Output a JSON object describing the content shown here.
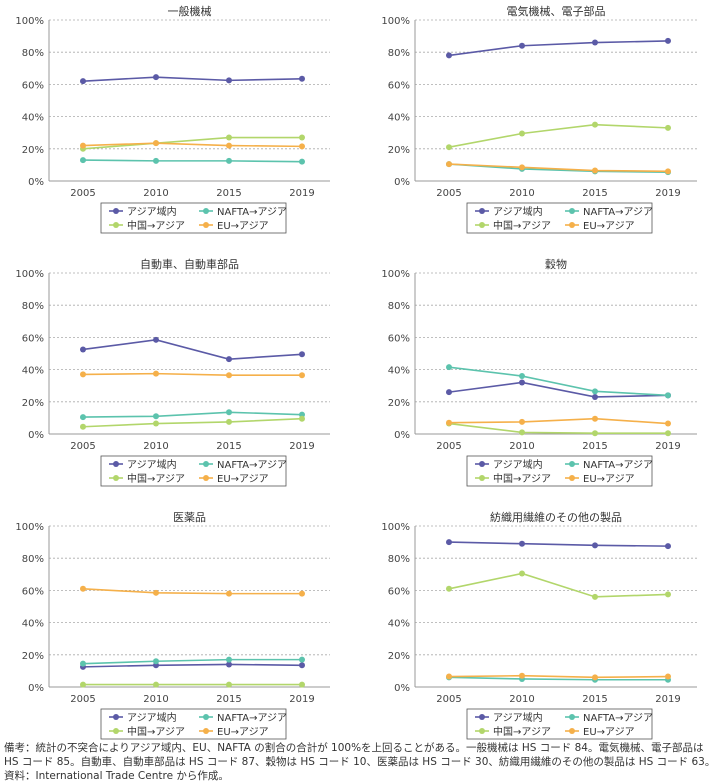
{
  "colors": {
    "asia": "#5b5aa6",
    "nafta": "#5cc3ad",
    "china": "#b2d66b",
    "eu": "#f5b04a",
    "grid": "#aaaaaa",
    "axis": "#999999"
  },
  "chart_data": [
    {
      "type": "line",
      "title": "一般機械",
      "x": [
        "2005",
        "2010",
        "2015",
        "2019"
      ],
      "y_ticks": [
        "0%",
        "20%",
        "40%",
        "60%",
        "80%",
        "100%"
      ],
      "ylim": [
        0,
        100
      ],
      "grid": true,
      "legend_position": "bottom",
      "series": [
        {
          "name": "アジア域内",
          "values": [
            62,
            64.5,
            62.5,
            63.5
          ]
        },
        {
          "name": "NAFTA→アジア",
          "values": [
            13,
            12.5,
            12.5,
            12
          ]
        },
        {
          "name": "中国→アジア",
          "values": [
            20,
            23.5,
            27,
            27
          ]
        },
        {
          "name": "EU→アジア",
          "values": [
            22,
            23.5,
            22,
            21.5
          ]
        }
      ]
    },
    {
      "type": "line",
      "title": "電気機械、電子部品",
      "x": [
        "2005",
        "2010",
        "2015",
        "2019"
      ],
      "y_ticks": [
        "0%",
        "20%",
        "40%",
        "60%",
        "80%",
        "100%"
      ],
      "ylim": [
        0,
        100
      ],
      "grid": true,
      "legend_position": "bottom",
      "series": [
        {
          "name": "アジア域内",
          "values": [
            78,
            84,
            86,
            87
          ]
        },
        {
          "name": "NAFTA→アジア",
          "values": [
            10.5,
            7.5,
            6,
            5.5
          ]
        },
        {
          "name": "中国→アジア",
          "values": [
            21,
            29.5,
            35,
            33
          ]
        },
        {
          "name": "EU→アジア",
          "values": [
            10.5,
            8.5,
            6.5,
            6
          ]
        }
      ]
    },
    {
      "type": "line",
      "title": "自動車、自動車部品",
      "x": [
        "2005",
        "2010",
        "2015",
        "2019"
      ],
      "y_ticks": [
        "0%",
        "20%",
        "40%",
        "60%",
        "80%",
        "100%"
      ],
      "ylim": [
        0,
        100
      ],
      "grid": true,
      "legend_position": "bottom",
      "series": [
        {
          "name": "アジア域内",
          "values": [
            52.5,
            58.5,
            46.5,
            49.5
          ]
        },
        {
          "name": "NAFTA→アジア",
          "values": [
            10.5,
            11,
            13.5,
            12
          ]
        },
        {
          "name": "中国→アジア",
          "values": [
            4.5,
            6.5,
            7.5,
            9.5
          ]
        },
        {
          "name": "EU→アジア",
          "values": [
            37,
            37.5,
            36.5,
            36.5
          ]
        }
      ]
    },
    {
      "type": "line",
      "title": "穀物",
      "x": [
        "2005",
        "2010",
        "2015",
        "2019"
      ],
      "y_ticks": [
        "0%",
        "20%",
        "40%",
        "60%",
        "80%",
        "100%"
      ],
      "ylim": [
        0,
        100
      ],
      "grid": true,
      "legend_position": "bottom",
      "series": [
        {
          "name": "アジア域内",
          "values": [
            26,
            32,
            23,
            24
          ]
        },
        {
          "name": "NAFTA→アジア",
          "values": [
            41.5,
            36,
            26.5,
            24
          ]
        },
        {
          "name": "中国→アジア",
          "values": [
            6.5,
            1,
            0.5,
            0.5
          ]
        },
        {
          "name": "EU→アジア",
          "values": [
            7,
            7.5,
            9.5,
            6.5
          ]
        }
      ]
    },
    {
      "type": "line",
      "title": "医薬品",
      "x": [
        "2005",
        "2010",
        "2015",
        "2019"
      ],
      "y_ticks": [
        "0%",
        "20%",
        "40%",
        "60%",
        "80%",
        "100%"
      ],
      "ylim": [
        0,
        100
      ],
      "grid": true,
      "legend_position": "bottom",
      "series": [
        {
          "name": "アジア域内",
          "values": [
            12.5,
            13.5,
            14,
            13.5
          ]
        },
        {
          "name": "NAFTA→アジア",
          "values": [
            14.5,
            16,
            17,
            17
          ]
        },
        {
          "name": "中国→アジア",
          "values": [
            1.5,
            1.5,
            1.5,
            1.5
          ]
        },
        {
          "name": "EU→アジア",
          "values": [
            61,
            58.5,
            58,
            58
          ]
        }
      ]
    },
    {
      "type": "line",
      "title": "紡織用繊維のその他の製品",
      "x": [
        "2005",
        "2010",
        "2015",
        "2019"
      ],
      "y_ticks": [
        "0%",
        "20%",
        "40%",
        "60%",
        "80%",
        "100%"
      ],
      "ylim": [
        0,
        100
      ],
      "grid": true,
      "legend_position": "bottom",
      "series": [
        {
          "name": "アジア域内",
          "values": [
            90,
            89,
            88,
            87.5
          ]
        },
        {
          "name": "NAFTA→アジア",
          "values": [
            6,
            5,
            4.5,
            4.5
          ]
        },
        {
          "name": "中国→アジア",
          "values": [
            61,
            70.5,
            56,
            57.5
          ]
        },
        {
          "name": "EU→アジア",
          "values": [
            6.5,
            7,
            6,
            6.5
          ]
        }
      ]
    }
  ],
  "notes": {
    "line1": "備考：統計の不突合によりアジア域内、EU、NAFTA の割合の合計が 100%を上回ることがある。一般機械は HS コード 84。電気機械、電子部品は HS コード 85。自動車、自動車部品は HS コード 87、穀物は HS コード 10、医薬品は HS コード 30、紡織用繊維のその他の製品は HS コード 63。",
    "line2": "資料：International Trade Centre から作成。"
  }
}
